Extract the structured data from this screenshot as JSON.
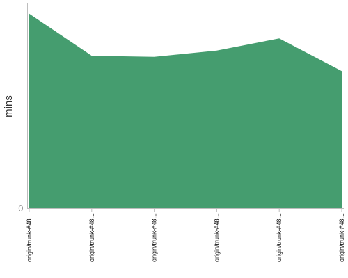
{
  "chart_data": {
    "type": "area",
    "title": "",
    "xlabel": "",
    "ylabel": "mins",
    "categories": [
      "origin/trunk-#48...",
      "origin/trunk-#48...",
      "origin/trunk-#48...",
      "origin/trunk-#48...",
      "origin/trunk-#48...",
      "origin/trunk-#48..."
    ],
    "values": [
      95,
      74.5,
      74,
      77,
      83,
      67
    ],
    "ylim": [
      0,
      100
    ],
    "y_ticks": [
      0
    ],
    "y_tick_labels": [
      "0"
    ],
    "grid": false,
    "legend": "none",
    "colors": {
      "fill": "#459d6f",
      "axis": "#bdbdbd",
      "text": "#111111"
    }
  }
}
